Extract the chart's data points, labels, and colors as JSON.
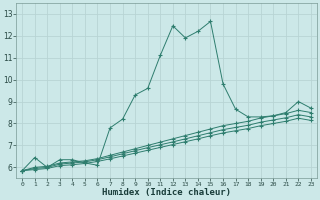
{
  "xlabel": "Humidex (Indice chaleur)",
  "bg_color": "#cce8e8",
  "grid_color": "#b8d4d4",
  "line_color": "#2e7d6e",
  "xlim": [
    -0.5,
    23.5
  ],
  "ylim": [
    5.5,
    13.5
  ],
  "yticks": [
    6,
    7,
    8,
    9,
    10,
    11,
    12,
    13
  ],
  "xticks": [
    0,
    1,
    2,
    3,
    4,
    5,
    6,
    7,
    8,
    9,
    10,
    11,
    12,
    13,
    14,
    15,
    16,
    17,
    18,
    19,
    20,
    21,
    22,
    23
  ],
  "series1_x": [
    0,
    1,
    2,
    3,
    4,
    5,
    6,
    7,
    8,
    9,
    10,
    11,
    12,
    13,
    14,
    15,
    16,
    17,
    18,
    19,
    20,
    21,
    22,
    23
  ],
  "series1_y": [
    5.85,
    6.45,
    6.0,
    6.35,
    6.35,
    6.2,
    6.1,
    7.8,
    8.2,
    9.3,
    9.6,
    11.1,
    12.45,
    11.9,
    12.2,
    12.65,
    9.8,
    8.65,
    8.3,
    8.3,
    8.35,
    8.5,
    9.0,
    8.7
  ],
  "series2_x": [
    0,
    1,
    2,
    3,
    4,
    5,
    6,
    7,
    8,
    9,
    10,
    11,
    12,
    13,
    14,
    15,
    16,
    17,
    18,
    19,
    20,
    21,
    22,
    23
  ],
  "series2_y": [
    5.85,
    6.0,
    6.05,
    6.2,
    6.25,
    6.3,
    6.4,
    6.55,
    6.7,
    6.85,
    7.0,
    7.15,
    7.3,
    7.45,
    7.6,
    7.75,
    7.9,
    8.0,
    8.1,
    8.25,
    8.35,
    8.45,
    8.6,
    8.5
  ],
  "series3_x": [
    0,
    1,
    2,
    3,
    4,
    5,
    6,
    7,
    8,
    9,
    10,
    11,
    12,
    13,
    14,
    15,
    16,
    17,
    18,
    19,
    20,
    21,
    22,
    23
  ],
  "series3_y": [
    5.85,
    5.95,
    6.0,
    6.15,
    6.2,
    6.25,
    6.35,
    6.48,
    6.62,
    6.76,
    6.9,
    7.03,
    7.16,
    7.3,
    7.44,
    7.58,
    7.72,
    7.82,
    7.92,
    8.06,
    8.16,
    8.26,
    8.4,
    8.3
  ],
  "series4_x": [
    0,
    1,
    2,
    3,
    4,
    5,
    6,
    7,
    8,
    9,
    10,
    11,
    12,
    13,
    14,
    15,
    16,
    17,
    18,
    19,
    20,
    21,
    22,
    23
  ],
  "series4_y": [
    5.85,
    5.9,
    5.95,
    6.08,
    6.12,
    6.18,
    6.27,
    6.39,
    6.52,
    6.65,
    6.78,
    6.91,
    7.04,
    7.17,
    7.3,
    7.44,
    7.57,
    7.67,
    7.77,
    7.9,
    8.0,
    8.1,
    8.24,
    8.14
  ]
}
